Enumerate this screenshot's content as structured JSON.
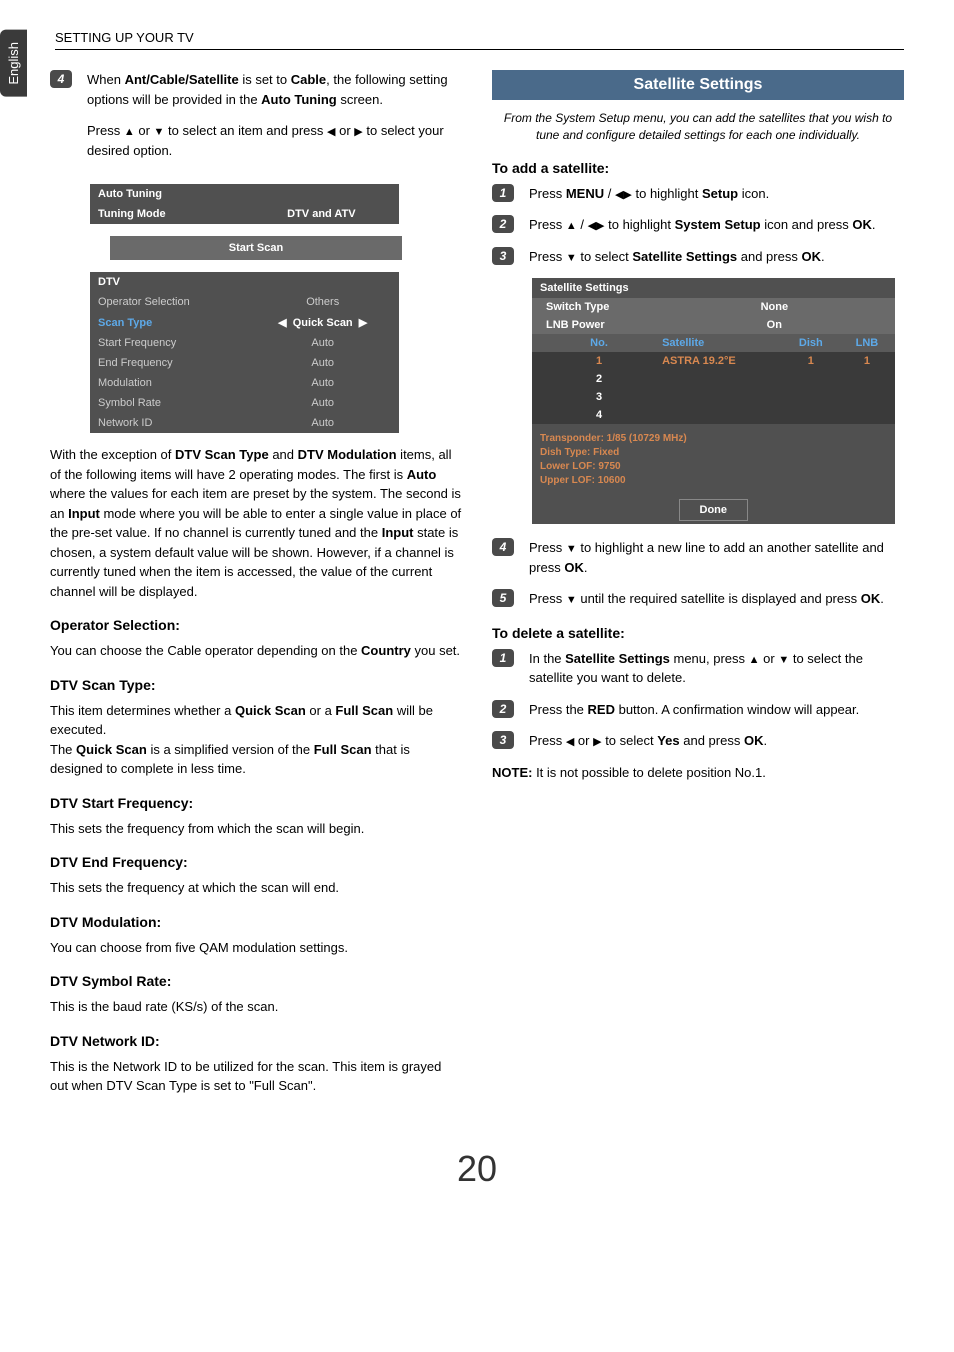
{
  "lang_tab": "English",
  "page_header": "SETTING UP YOUR TV",
  "page_number": "20",
  "left": {
    "step4": {
      "num": "4",
      "text_parts": [
        "When ",
        "Ant/Cable/Satellite",
        " is set to ",
        "Cable",
        ", the following setting options will be provided in the ",
        "Auto Tuning",
        " screen."
      ],
      "press_text_parts": [
        "Press ",
        "▲",
        " or ",
        "▼",
        " to select an item and press ",
        "◀",
        " or ",
        "▶",
        " to select your desired option."
      ]
    },
    "auto_tuning": {
      "title": "Auto Tuning",
      "rows": [
        {
          "label": "Tuning Mode",
          "value": "DTV and ATV",
          "style": "first"
        },
        {
          "start_scan": "Start Scan"
        },
        {
          "section": "DTV"
        },
        {
          "label": "Operator Selection",
          "value": "Others"
        },
        {
          "label": "Scan Type",
          "value": "Quick Scan",
          "style": "highlight",
          "arrows": true
        },
        {
          "label": "Start Frequency",
          "value": "Auto"
        },
        {
          "label": "End Frequency",
          "value": "Auto"
        },
        {
          "label": "Modulation",
          "value": "Auto"
        },
        {
          "label": "Symbol Rate",
          "value": "Auto"
        },
        {
          "label": "Network ID",
          "value": "Auto"
        }
      ]
    },
    "main_para_parts": [
      "With the exception of ",
      "DTV Scan Type",
      " and ",
      "DTV Modulation",
      " items, all of the following items will have 2 operating modes. The first is ",
      "Auto",
      " where the values for each item are preset by the system. The second is an ",
      "Input",
      " mode where you will be able to enter a single value in place of the pre-set value. If no channel is currently tuned and the ",
      "Input",
      " state is chosen, a system default value will be shown. However, if a channel is currently tuned when the item is accessed, the value of the current channel will be displayed."
    ],
    "sections": [
      {
        "head": "Operator Selection:",
        "body_parts": [
          "You can choose the Cable operator depending on the ",
          "Country",
          " you set."
        ]
      },
      {
        "head": "DTV Scan Type:",
        "body_parts": [
          "This item determines whether a ",
          "Quick Scan",
          " or a ",
          "Full Scan",
          " will be executed.\nThe ",
          "Quick Scan",
          " is a simplified version of the ",
          "Full Scan",
          " that is designed to complete in less time."
        ]
      },
      {
        "head": "DTV Start Frequency:",
        "body_parts": [
          "This sets the frequency from which the scan will begin."
        ]
      },
      {
        "head": "DTV End Frequency:",
        "body_parts": [
          "This sets the frequency at which the scan will end."
        ]
      },
      {
        "head": "DTV Modulation:",
        "body_parts": [
          "You can choose from five QAM modulation settings."
        ]
      },
      {
        "head": "DTV Symbol Rate:",
        "body_parts": [
          "This is the baud rate (KS/s) of the scan."
        ]
      },
      {
        "head": "DTV Network ID:",
        "body_parts": [
          "This is the Network ID to be utilized for the scan. This item is grayed out when DTV Scan Type is set to \"Full Scan\"."
        ]
      }
    ]
  },
  "right": {
    "banner": "Satellite Settings",
    "subtitle": "From the System Setup menu, you can add the satellites that you wish to tune and configure detailed settings for each one individually.",
    "add_head": "To add a satellite:",
    "add_steps": [
      {
        "num": "1",
        "parts": [
          "Press ",
          "MENU",
          " / ",
          "◀▶",
          " to highlight ",
          "Setup",
          " icon."
        ]
      },
      {
        "num": "2",
        "parts": [
          "Press ",
          "▲",
          " / ",
          "◀▶",
          " to highlight ",
          "System Setup",
          " icon and press ",
          "OK",
          "."
        ]
      },
      {
        "num": "3",
        "parts": [
          "Press ",
          "▼",
          " to select ",
          "Satellite Settings",
          " and press ",
          "OK",
          "."
        ]
      }
    ],
    "sat_table": {
      "title": "Satellite Settings",
      "switch_type": {
        "label": "Switch Type",
        "value": "None"
      },
      "lnb_power": {
        "label": "LNB Power",
        "value": "On"
      },
      "headers": [
        "No.",
        "Satellite",
        "Dish",
        "LNB"
      ],
      "rows": [
        {
          "no": "1",
          "sat": "ASTRA 19.2°E",
          "dish": "1",
          "lnb": "1",
          "selected": true
        },
        {
          "no": "2",
          "sat": "",
          "dish": "",
          "lnb": ""
        },
        {
          "no": "3",
          "sat": "",
          "dish": "",
          "lnb": ""
        },
        {
          "no": "4",
          "sat": "",
          "dish": "",
          "lnb": ""
        }
      ],
      "info": [
        "Transponder: 1/85 (10729 MHz)",
        "Dish Type: Fixed",
        "Lower LOF: 9750",
        "Upper LOF: 10600"
      ],
      "done": "Done"
    },
    "add_steps_after": [
      {
        "num": "4",
        "parts": [
          "Press ",
          "▼",
          " to highlight a new line to add an another satellite and press ",
          "OK",
          "."
        ]
      },
      {
        "num": "5",
        "parts": [
          "Press ",
          "▼",
          " until the required satellite is displayed and press ",
          "OK",
          "."
        ]
      }
    ],
    "del_head": "To delete a satellite:",
    "del_steps": [
      {
        "num": "1",
        "parts": [
          "In the ",
          "Satellite Settings",
          " menu, press ",
          "▲",
          " or ",
          "▼",
          " to select the satellite you want to delete."
        ]
      },
      {
        "num": "2",
        "parts": [
          "Press the ",
          "RED",
          " button. A confirmation window will appear."
        ]
      },
      {
        "num": "3",
        "parts": [
          "Press ",
          "◀",
          " or ",
          "▶",
          " to select ",
          "Yes",
          " and press ",
          "OK",
          "."
        ]
      }
    ],
    "note_parts": [
      "NOTE:",
      " It is not possible to delete position No.1."
    ]
  }
}
